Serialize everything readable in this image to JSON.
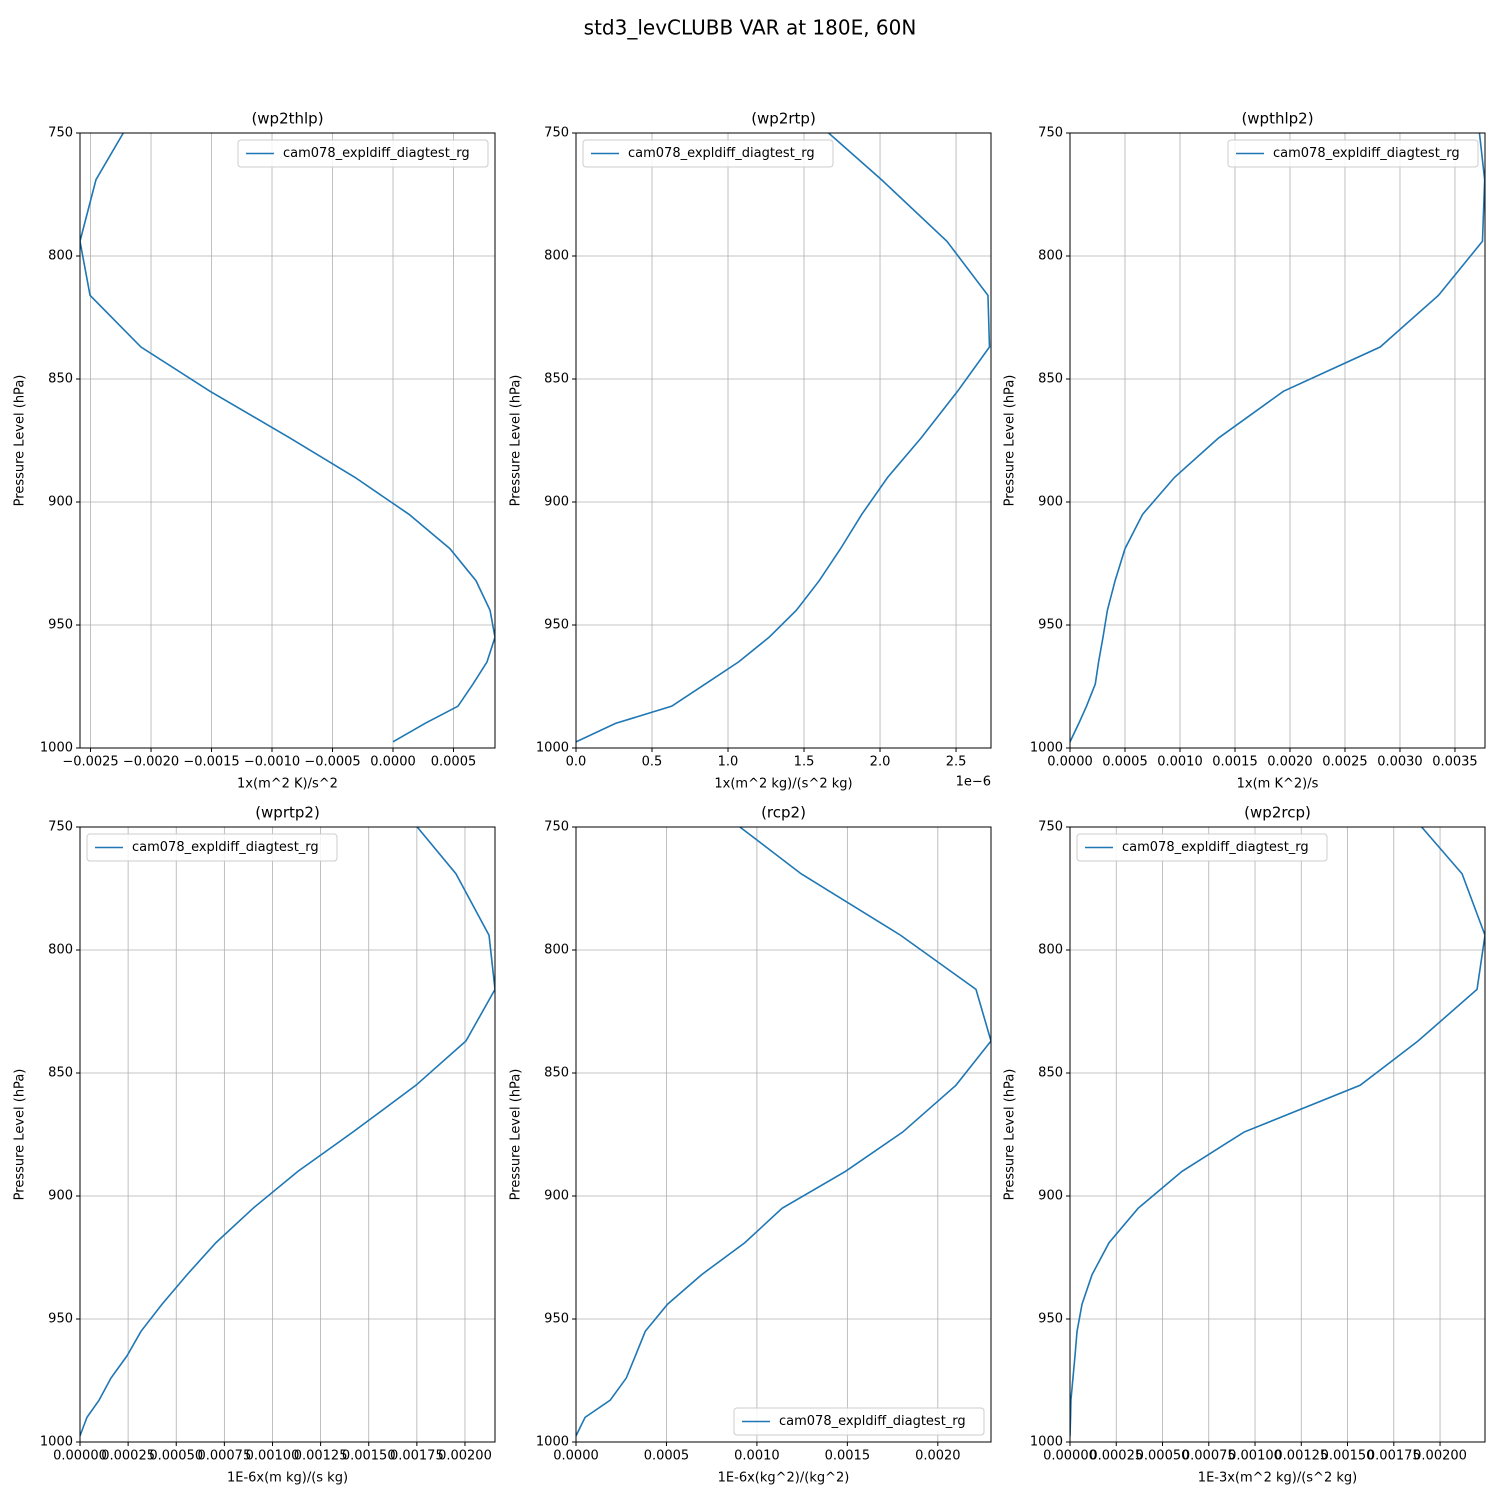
{
  "title": "std3_levCLUBB VAR at 180E, 60N",
  "chart_data": [
    {
      "type": "line",
      "title": "(wp2thlp)",
      "xlabel": "1x(m^2 K)/s^2",
      "ylabel": "Pressure Level (hPa)",
      "legend": "upper right",
      "grid": true,
      "xlim": [
        -0.002587,
        0.000843
      ],
      "ylim": [
        1000,
        750
      ],
      "xticks": [
        {
          "value": -0.0025,
          "label": "−0.0025"
        },
        {
          "value": -0.002,
          "label": "−0.0020"
        },
        {
          "value": -0.0015,
          "label": "−0.0015"
        },
        {
          "value": -0.001,
          "label": "−0.0010"
        },
        {
          "value": -0.0005,
          "label": "−0.0005"
        },
        {
          "value": 0,
          "label": "0.0000"
        },
        {
          "value": 0.0005,
          "label": "0.0005"
        }
      ],
      "yticks": [
        750,
        800,
        850,
        900,
        950,
        1000
      ],
      "y": [
        745,
        769,
        794,
        816,
        837,
        855,
        874,
        890,
        905,
        919,
        932,
        944,
        955,
        965,
        974,
        983,
        990,
        997.5
      ],
      "series": [
        {
          "name": "cam078_expldiff_diagtest_rg",
          "color": "#1f77b4",
          "values": [
            -0.00217,
            -0.002455,
            -0.002587,
            -0.002504,
            -0.002083,
            -0.001512,
            -0.000851,
            -0.000314,
            0.000132,
            0.000471,
            0.000686,
            0.000802,
            0.000843,
            0.000777,
            0.000661,
            0.000537,
            0.000264,
            0.0
          ]
        }
      ]
    },
    {
      "type": "line",
      "title": "(wp2rtp)",
      "xlabel": "1x(m^2 kg)/(s^2 kg)",
      "ylabel": "Pressure Level (hPa)",
      "legend": "upper left",
      "grid": true,
      "x_offset_label": "1e−6",
      "xlim": [
        0,
        2.73e-06
      ],
      "ylim": [
        1000,
        750
      ],
      "xticks": [
        {
          "value": 0,
          "label": "0.0"
        },
        {
          "value": 5e-07,
          "label": "0.5"
        },
        {
          "value": 1e-06,
          "label": "1.0"
        },
        {
          "value": 1.5e-06,
          "label": "1.5"
        },
        {
          "value": 2e-06,
          "label": "2.0"
        },
        {
          "value": 2.5e-06,
          "label": "2.5"
        }
      ],
      "yticks": [
        750,
        800,
        850,
        900,
        950,
        1000
      ],
      "y": [
        745,
        769,
        794,
        816,
        837,
        855,
        874,
        890,
        905,
        919,
        932,
        944,
        955,
        965,
        974,
        983,
        990,
        997.5
      ],
      "series": [
        {
          "name": "cam078_expldiff_diagtest_rg",
          "color": "#1f77b4",
          "values": [
            1.57e-06,
            2.01e-06,
            2.44e-06,
            2.71e-06,
            2.72e-06,
            2.51e-06,
            2.27e-06,
            2.05e-06,
            1.88e-06,
            1.74e-06,
            1.6e-06,
            1.45e-06,
            1.27e-06,
            1.07e-06,
            8.5e-07,
            6.3e-07,
            2.6e-07,
            0.0
          ]
        }
      ]
    },
    {
      "type": "line",
      "title": "(wpthlp2)",
      "xlabel": "1x(m K^2)/s",
      "ylabel": "Pressure Level (hPa)",
      "legend": "upper right",
      "grid": true,
      "xlim": [
        0,
        0.003773
      ],
      "ylim": [
        1000,
        750
      ],
      "xticks": [
        {
          "value": 0,
          "label": "0.0000"
        },
        {
          "value": 0.0005,
          "label": "0.0005"
        },
        {
          "value": 0.001,
          "label": "0.0010"
        },
        {
          "value": 0.0015,
          "label": "0.0015"
        },
        {
          "value": 0.002,
          "label": "0.0020"
        },
        {
          "value": 0.0025,
          "label": "0.0025"
        },
        {
          "value": 0.003,
          "label": "0.0030"
        },
        {
          "value": 0.0035,
          "label": "0.0035"
        }
      ],
      "yticks": [
        750,
        800,
        850,
        900,
        950,
        1000
      ],
      "y": [
        745,
        769,
        794,
        816,
        837,
        855,
        874,
        890,
        905,
        919,
        932,
        944,
        955,
        965,
        974,
        983,
        990,
        997.5
      ],
      "series": [
        {
          "name": "cam078_expldiff_diagtest_rg",
          "color": "#1f77b4",
          "values": [
            0.00371,
            0.00377,
            0.00375,
            0.00335,
            0.00282,
            0.00194,
            0.00135,
            0.00095,
            0.00066,
            0.0005,
            0.00041,
            0.00034,
            0.0003,
            0.00026,
            0.00023,
            0.00015,
            8e-05,
            0.0
          ]
        }
      ]
    },
    {
      "type": "line",
      "title": "(wprtp2)",
      "xlabel": "1E-6x(m kg)/(s kg)",
      "ylabel": "Pressure Level (hPa)",
      "legend": "upper left",
      "grid": true,
      "xlim": [
        0,
        0.002156
      ],
      "ylim": [
        1000,
        750
      ],
      "xticks": [
        {
          "value": 0,
          "label": "0.00000"
        },
        {
          "value": 0.00025,
          "label": "0.00025"
        },
        {
          "value": 0.0005,
          "label": "0.00050"
        },
        {
          "value": 0.00075,
          "label": "0.00075"
        },
        {
          "value": 0.001,
          "label": "0.00100"
        },
        {
          "value": 0.00125,
          "label": "0.00125"
        },
        {
          "value": 0.0015,
          "label": "0.00150"
        },
        {
          "value": 0.00175,
          "label": "0.00175"
        },
        {
          "value": 0.002,
          "label": "0.00200"
        }
      ],
      "yticks": [
        750,
        800,
        850,
        900,
        950,
        1000
      ],
      "y": [
        745,
        769,
        794,
        816,
        837,
        855,
        874,
        890,
        905,
        919,
        932,
        944,
        955,
        965,
        974,
        983,
        990,
        997.5
      ],
      "series": [
        {
          "name": "cam078_expldiff_diagtest_rg",
          "color": "#1f77b4",
          "values": [
            0.001699,
            0.001953,
            0.002125,
            0.002156,
            0.002005,
            0.001745,
            0.001418,
            0.001132,
            0.000899,
            0.000706,
            0.000556,
            0.000426,
            0.000317,
            0.000244,
            0.000161,
            9.9e-05,
            3.6e-05,
            0.0
          ]
        }
      ]
    },
    {
      "type": "line",
      "title": "(rcp2)",
      "xlabel": "1E-6x(kg^2)/(kg^2)",
      "ylabel": "Pressure Level (hPa)",
      "legend": "lower right",
      "grid": true,
      "xlim": [
        0,
        0.002294
      ],
      "ylim": [
        1000,
        750
      ],
      "xticks": [
        {
          "value": 0,
          "label": "0.0000"
        },
        {
          "value": 0.0005,
          "label": "0.0005"
        },
        {
          "value": 0.001,
          "label": "0.0010"
        },
        {
          "value": 0.0015,
          "label": "0.0015"
        },
        {
          "value": 0.002,
          "label": "0.0020"
        }
      ],
      "yticks": [
        750,
        800,
        850,
        900,
        950,
        1000
      ],
      "y": [
        745,
        769,
        794,
        816,
        837,
        855,
        874,
        890,
        905,
        919,
        932,
        944,
        955,
        965,
        974,
        983,
        990,
        997.5
      ],
      "series": [
        {
          "name": "cam078_expldiff_diagtest_rg",
          "color": "#1f77b4",
          "values": [
            0.000817,
            0.001244,
            0.001794,
            0.002211,
            0.002294,
            0.0021,
            0.001806,
            0.001489,
            0.001139,
            0.000933,
            0.000694,
            0.000506,
            0.000383,
            0.000328,
            0.000278,
            0.000189,
            5e-05,
            0.0
          ]
        }
      ]
    },
    {
      "type": "line",
      "title": "(wp2rcp)",
      "xlabel": "1E-3x(m^2 kg)/(s^2 kg)",
      "ylabel": "Pressure Level (hPa)",
      "legend": "upper left",
      "grid": true,
      "xlim": [
        0,
        0.002243
      ],
      "ylim": [
        1000,
        750
      ],
      "xticks": [
        {
          "value": 0,
          "label": "0.00000"
        },
        {
          "value": 0.00025,
          "label": "0.00025"
        },
        {
          "value": 0.0005,
          "label": "0.00050"
        },
        {
          "value": 0.00075,
          "label": "0.00075"
        },
        {
          "value": 0.001,
          "label": "0.00100"
        },
        {
          "value": 0.00125,
          "label": "0.00125"
        },
        {
          "value": 0.0015,
          "label": "0.00150"
        },
        {
          "value": 0.00175,
          "label": "0.00175"
        },
        {
          "value": 0.002,
          "label": "0.00200"
        }
      ],
      "yticks": [
        750,
        800,
        850,
        900,
        950,
        1000
      ],
      "y": [
        745,
        769,
        794,
        816,
        837,
        855,
        874,
        890,
        905,
        919,
        932,
        944,
        955,
        965,
        974,
        983,
        990,
        997.5
      ],
      "series": [
        {
          "name": "cam078_expldiff_diagtest_rg",
          "color": "#1f77b4",
          "values": [
            0.001843,
            0.002119,
            0.002243,
            0.0022,
            0.001881,
            0.001568,
            0.000941,
            0.000605,
            0.000368,
            0.000211,
            0.000119,
            6.5e-05,
            3.8e-05,
            2.7e-05,
            1.6e-05,
            5e-06,
            3e-06,
            0.0
          ]
        }
      ]
    }
  ]
}
